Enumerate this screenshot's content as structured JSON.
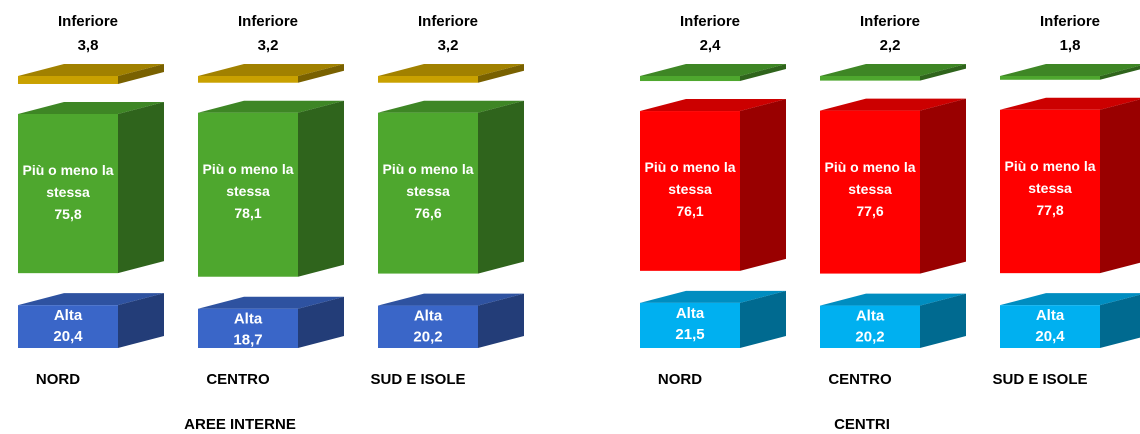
{
  "chart_data": [
    {
      "type": "bar",
      "stacked": true,
      "title": "AREE INTERNE",
      "categories": [
        "NORD",
        "CENTRO",
        "SUD E ISOLE"
      ],
      "series": [
        {
          "name": "Inferiore",
          "color": "#c9a100",
          "values": [
            3.8,
            3.2,
            3.2
          ],
          "value_labels": [
            "3,8",
            "3,2",
            "3,2"
          ]
        },
        {
          "name": "Più o meno la stessa",
          "color": "#4ea72e",
          "values": [
            75.8,
            78.1,
            76.6
          ],
          "value_labels": [
            "75,8",
            "78,1",
            "76,6"
          ]
        },
        {
          "name": "Alta",
          "color": "#3a66c8",
          "values": [
            20.4,
            18.7,
            20.2
          ],
          "value_labels": [
            "20,4",
            "18,7",
            "20,2"
          ]
        }
      ]
    },
    {
      "type": "bar",
      "stacked": true,
      "title": "CENTRI",
      "categories": [
        "NORD",
        "CENTRO",
        "SUD E ISOLE"
      ],
      "series": [
        {
          "name": "Inferiore",
          "color": "#4ea72e",
          "values": [
            2.4,
            2.2,
            1.8
          ],
          "value_labels": [
            "2,4",
            "2,2",
            "1,8"
          ]
        },
        {
          "name": "Più o meno la stessa",
          "color": "#ff0000",
          "values": [
            76.1,
            77.6,
            77.8
          ],
          "value_labels": [
            "76,1",
            "77,6",
            "77,8"
          ]
        },
        {
          "name": "Alta",
          "color": "#00b0f0",
          "values": [
            21.5,
            20.2,
            20.4
          ],
          "value_labels": [
            "21,5",
            "20,2",
            "20,4"
          ]
        }
      ]
    }
  ]
}
